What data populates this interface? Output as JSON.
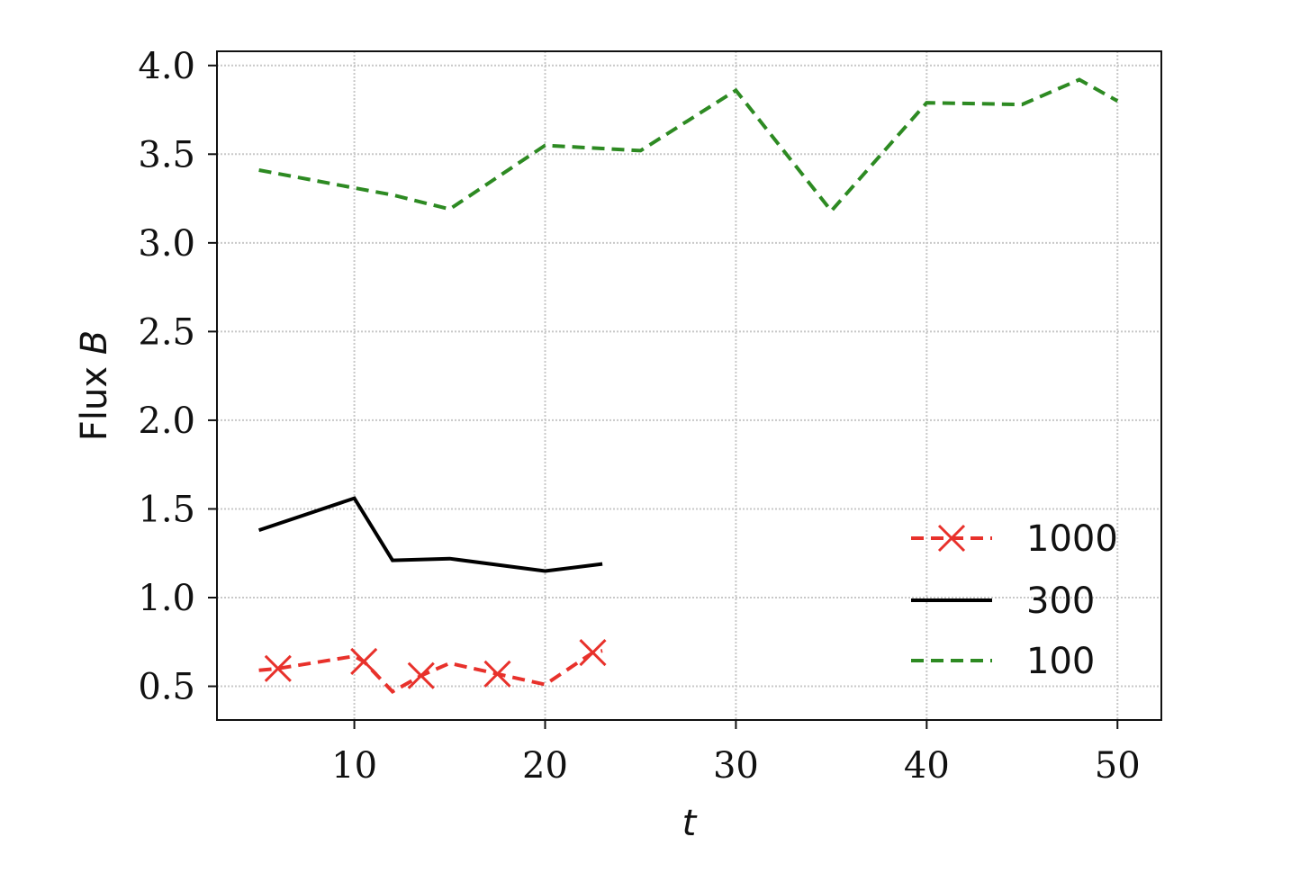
{
  "chart_data": {
    "type": "line",
    "title": "",
    "xlabel": "t",
    "ylabel_prefix": "Flux ",
    "ylabel_symbol": "B",
    "xlim": [
      2.8,
      52.3
    ],
    "ylim": [
      0.31,
      4.08
    ],
    "xticks": [
      10,
      20,
      30,
      40,
      50
    ],
    "xtick_labels": [
      "10",
      "20",
      "30",
      "40",
      "50"
    ],
    "yticks": [
      0.5,
      1.0,
      1.5,
      2.0,
      2.5,
      3.0,
      3.5,
      4.0
    ],
    "ytick_labels": [
      "0.5",
      "1.0",
      "1.5",
      "2.0",
      "2.5",
      "3.0",
      "3.5",
      "4.0"
    ],
    "grid": true,
    "legend_position": "lower-right",
    "series": [
      {
        "name": "1000",
        "color": "#e8312b",
        "line_style": "dashed",
        "marker": "x",
        "x": [
          5,
          6,
          10,
          10.5,
          12,
          13.5,
          15,
          17.5,
          20,
          22.5,
          23
        ],
        "y": [
          0.59,
          0.6,
          0.67,
          0.64,
          0.47,
          0.56,
          0.63,
          0.57,
          0.51,
          0.69,
          0.7
        ],
        "marker_x": [
          6,
          10.5,
          13.5,
          17.5,
          22.5
        ]
      },
      {
        "name": "300",
        "color": "#000000",
        "line_style": "solid",
        "marker": "none",
        "x": [
          5,
          10,
          12,
          15,
          20,
          23
        ],
        "y": [
          1.38,
          1.56,
          1.21,
          1.22,
          1.15,
          1.19
        ]
      },
      {
        "name": "100",
        "color": "#2d8a22",
        "line_style": "dashed",
        "marker": "none",
        "x": [
          5,
          10,
          12,
          15,
          20,
          25,
          30,
          35,
          40,
          45,
          48,
          50
        ],
        "y": [
          3.41,
          3.31,
          3.27,
          3.19,
          3.55,
          3.52,
          3.86,
          3.18,
          3.79,
          3.78,
          3.92,
          3.8
        ]
      }
    ]
  }
}
